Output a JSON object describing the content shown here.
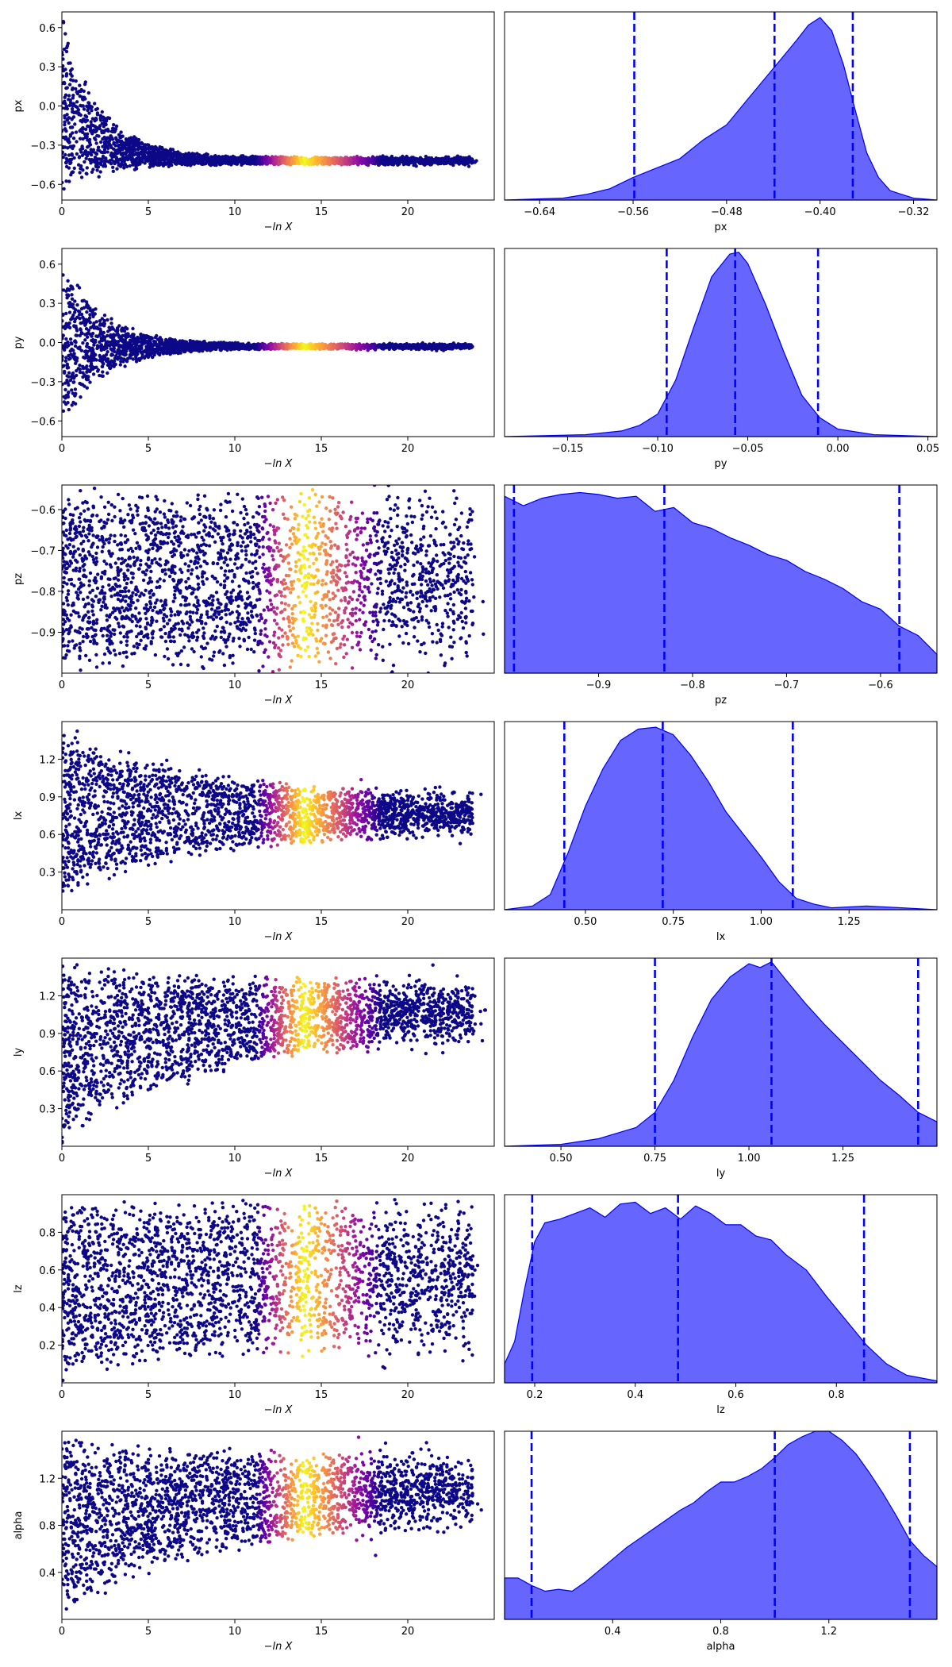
{
  "chart_data": [
    {
      "type": "scatter",
      "panel": "trace",
      "ylabel": "px",
      "xlabel": "−ln X",
      "xlim": [
        0,
        25
      ],
      "ylim": [
        -0.72,
        0.72
      ],
      "xticks": [
        0,
        5,
        10,
        15,
        20
      ],
      "yticks": [
        -0.6,
        -0.3,
        0.0,
        0.3,
        0.6
      ],
      "ytick_labels": [
        "−0.6",
        "−0.3",
        "0.0",
        "0.3",
        "0.6"
      ],
      "shape": {
        "center_start": 0.0,
        "center_end": -0.42,
        "half_start": 0.72,
        "half_end": 0.03,
        "decay": 2.2,
        "xmax": 24.5
      },
      "colormap": "plasma",
      "bright_band_center": 14
    },
    {
      "type": "area",
      "panel": "posterior",
      "xlabel": "px",
      "xlim": [
        -0.67,
        -0.3
      ],
      "xticks": [
        -0.64,
        -0.56,
        -0.48,
        -0.4,
        -0.32
      ],
      "xtick_labels": [
        "−0.64",
        "−0.56",
        "−0.48",
        "−0.40",
        "−0.32"
      ],
      "fill_color": "#6666ff",
      "edge_color": "#0000ee",
      "quantile_color": "#0000ff",
      "quantiles": [
        -0.559,
        -0.439,
        -0.372
      ],
      "density": {
        "x": [
          -0.67,
          -0.62,
          -0.6,
          -0.58,
          -0.56,
          -0.54,
          -0.52,
          -0.5,
          -0.48,
          -0.46,
          -0.44,
          -0.42,
          -0.41,
          -0.4,
          -0.39,
          -0.38,
          -0.37,
          -0.36,
          -0.35,
          -0.34,
          -0.32,
          -0.3
        ],
        "y": [
          0.0,
          0.01,
          0.03,
          0.06,
          0.12,
          0.17,
          0.22,
          0.32,
          0.4,
          0.55,
          0.7,
          0.85,
          0.93,
          0.97,
          0.9,
          0.72,
          0.48,
          0.25,
          0.12,
          0.05,
          0.01,
          0.0
        ]
      }
    },
    {
      "type": "scatter",
      "panel": "trace",
      "ylabel": "py",
      "xlabel": "−ln X",
      "xlim": [
        0,
        25
      ],
      "ylim": [
        -0.72,
        0.72
      ],
      "xticks": [
        0,
        5,
        10,
        15,
        20
      ],
      "yticks": [
        -0.6,
        -0.3,
        0.0,
        0.3,
        0.6
      ],
      "ytick_labels": [
        "−0.6",
        "−0.3",
        "0.0",
        "0.3",
        "0.6"
      ],
      "shape": {
        "center_start": 0.0,
        "center_end": -0.03,
        "half_start": 0.72,
        "half_end": 0.02,
        "decay": 2.3,
        "xmax": 24.5
      },
      "colormap": "plasma",
      "bright_band_center": 14
    },
    {
      "type": "area",
      "panel": "posterior",
      "xlabel": "py",
      "xlim": [
        -0.185,
        0.055
      ],
      "xticks": [
        -0.15,
        -0.1,
        -0.05,
        0.0,
        0.05
      ],
      "xtick_labels": [
        "−0.15",
        "−0.10",
        "−0.05",
        "0.00",
        "0.05"
      ],
      "fill_color": "#6666ff",
      "edge_color": "#0000ee",
      "quantile_color": "#0000ff",
      "quantiles": [
        -0.095,
        -0.057,
        -0.011
      ],
      "density": {
        "x": [
          -0.185,
          -0.14,
          -0.12,
          -0.11,
          -0.1,
          -0.09,
          -0.08,
          -0.07,
          -0.06,
          -0.055,
          -0.05,
          -0.04,
          -0.03,
          -0.02,
          -0.01,
          0.0,
          0.02,
          0.055
        ],
        "y": [
          0.0,
          0.01,
          0.03,
          0.06,
          0.12,
          0.3,
          0.58,
          0.85,
          0.97,
          0.98,
          0.92,
          0.7,
          0.45,
          0.22,
          0.1,
          0.04,
          0.01,
          0.0
        ]
      }
    },
    {
      "type": "scatter",
      "panel": "trace",
      "ylabel": "pz",
      "xlabel": "−ln X",
      "xlim": [
        0,
        25
      ],
      "ylim": [
        -1.0,
        -0.54
      ],
      "xticks": [
        0,
        5,
        10,
        15,
        20
      ],
      "yticks": [
        -0.9,
        -0.8,
        -0.7,
        -0.6
      ],
      "ytick_labels": [
        "−0.9",
        "−0.8",
        "−0.7",
        "−0.6"
      ],
      "shape": {
        "center_start": -0.77,
        "center_end": -0.77,
        "half_start": 0.23,
        "half_end": 0.23,
        "decay": 1,
        "xmax": 24.5
      },
      "colormap": "plasma",
      "bright_band_center": 14
    },
    {
      "type": "area",
      "panel": "posterior",
      "xlabel": "pz",
      "xlim": [
        -1.0,
        -0.54
      ],
      "xticks": [
        -0.9,
        -0.8,
        -0.7,
        -0.6
      ],
      "xtick_labels": [
        "−0.9",
        "−0.8",
        "−0.7",
        "−0.6"
      ],
      "fill_color": "#6666ff",
      "edge_color": "#0000ee",
      "quantile_color": "#0000ff",
      "quantiles": [
        -0.99,
        -0.83,
        -0.58
      ],
      "density": {
        "x": [
          -1.0,
          -0.98,
          -0.96,
          -0.94,
          -0.92,
          -0.9,
          -0.88,
          -0.86,
          -0.84,
          -0.82,
          -0.8,
          -0.78,
          -0.76,
          -0.74,
          -0.72,
          -0.7,
          -0.68,
          -0.66,
          -0.64,
          -0.62,
          -0.6,
          -0.58,
          -0.56,
          -0.54
        ],
        "y": [
          0.94,
          0.89,
          0.93,
          0.95,
          0.96,
          0.95,
          0.93,
          0.94,
          0.86,
          0.88,
          0.8,
          0.77,
          0.72,
          0.68,
          0.63,
          0.6,
          0.54,
          0.5,
          0.45,
          0.38,
          0.34,
          0.25,
          0.2,
          0.1
        ]
      }
    },
    {
      "type": "scatter",
      "panel": "trace",
      "ylabel": "lx",
      "xlabel": "−ln X",
      "xlim": [
        0,
        25
      ],
      "ylim": [
        0.0,
        1.5
      ],
      "xticks": [
        0,
        5,
        10,
        15,
        20
      ],
      "yticks": [
        0.3,
        0.6,
        0.9,
        1.2
      ],
      "ytick_labels": [
        "0.3",
        "0.6",
        "0.9",
        "1.2"
      ],
      "shape": {
        "center_start": 0.78,
        "center_end": 0.76,
        "half_start": 0.72,
        "half_end": 0.12,
        "decay": 9,
        "xmax": 24.5
      },
      "colormap": "plasma",
      "bright_band_center": 14
    },
    {
      "type": "area",
      "panel": "posterior",
      "xlabel": "lx",
      "xlim": [
        0.27,
        1.5
      ],
      "xticks": [
        0.5,
        0.75,
        1.0,
        1.25
      ],
      "xtick_labels": [
        "0.50",
        "0.75",
        "1.00",
        "1.25"
      ],
      "fill_color": "#6666ff",
      "edge_color": "#0000ee",
      "quantile_color": "#0000ff",
      "quantiles": [
        0.44,
        0.72,
        1.09
      ],
      "density": {
        "x": [
          0.27,
          0.35,
          0.4,
          0.45,
          0.5,
          0.55,
          0.6,
          0.65,
          0.7,
          0.75,
          0.8,
          0.85,
          0.9,
          0.95,
          1.0,
          1.05,
          1.1,
          1.15,
          1.2,
          1.3,
          1.4,
          1.5
        ],
        "y": [
          0.0,
          0.02,
          0.08,
          0.3,
          0.55,
          0.75,
          0.9,
          0.96,
          0.97,
          0.93,
          0.82,
          0.68,
          0.52,
          0.4,
          0.28,
          0.15,
          0.06,
          0.03,
          0.01,
          0.02,
          0.01,
          0.0
        ]
      }
    },
    {
      "type": "scatter",
      "panel": "trace",
      "ylabel": "ly",
      "xlabel": "−ln X",
      "xlim": [
        0,
        25
      ],
      "ylim": [
        0.0,
        1.5
      ],
      "xticks": [
        0,
        5,
        10,
        15,
        20
      ],
      "yticks": [
        0.3,
        0.6,
        0.9,
        1.2
      ],
      "ytick_labels": [
        "0.3",
        "0.6",
        "0.9",
        "1.2"
      ],
      "shape": {
        "center_start": 0.75,
        "center_end": 1.1,
        "half_start": 0.75,
        "half_end": 0.22,
        "decay": 9,
        "xmax": 24.5
      },
      "colormap": "plasma",
      "bright_band_center": 14
    },
    {
      "type": "area",
      "panel": "posterior",
      "xlabel": "ly",
      "xlim": [
        0.35,
        1.5
      ],
      "xticks": [
        0.5,
        0.75,
        1.0,
        1.25
      ],
      "xtick_labels": [
        "0.50",
        "0.75",
        "1.00",
        "1.25"
      ],
      "fill_color": "#6666ff",
      "edge_color": "#0000ee",
      "quantile_color": "#0000ff",
      "quantiles": [
        0.75,
        1.06,
        1.45
      ],
      "density": {
        "x": [
          0.35,
          0.5,
          0.6,
          0.7,
          0.75,
          0.8,
          0.85,
          0.9,
          0.95,
          1.0,
          1.03,
          1.06,
          1.1,
          1.15,
          1.2,
          1.25,
          1.3,
          1.35,
          1.4,
          1.45,
          1.5
        ],
        "y": [
          0.0,
          0.01,
          0.04,
          0.1,
          0.18,
          0.35,
          0.58,
          0.78,
          0.9,
          0.97,
          0.95,
          0.98,
          0.88,
          0.76,
          0.65,
          0.55,
          0.45,
          0.35,
          0.27,
          0.18,
          0.13
        ]
      }
    },
    {
      "type": "scatter",
      "panel": "trace",
      "ylabel": "lz",
      "xlabel": "−ln X",
      "xlim": [
        0,
        25
      ],
      "ylim": [
        0.0,
        1.0
      ],
      "xticks": [
        0,
        5,
        10,
        15,
        20
      ],
      "yticks": [
        0.2,
        0.4,
        0.6,
        0.8
      ],
      "ytick_labels": [
        "0.2",
        "0.4",
        "0.6",
        "0.8"
      ],
      "shape": {
        "center_start": 0.5,
        "center_end": 0.56,
        "half_start": 0.5,
        "half_end": 0.42,
        "decay": 5,
        "xmax": 24.5
      },
      "colormap": "plasma",
      "bright_band_center": 14
    },
    {
      "type": "area",
      "panel": "posterior",
      "xlabel": "lz",
      "xlim": [
        0.14,
        1.0
      ],
      "xticks": [
        0.2,
        0.4,
        0.6,
        0.8
      ],
      "xtick_labels": [
        "0.2",
        "0.4",
        "0.6",
        "0.8"
      ],
      "fill_color": "#6666ff",
      "edge_color": "#0000ee",
      "quantile_color": "#0000ff",
      "quantiles": [
        0.195,
        0.485,
        0.855
      ],
      "density": {
        "x": [
          0.14,
          0.16,
          0.18,
          0.2,
          0.22,
          0.25,
          0.28,
          0.31,
          0.34,
          0.37,
          0.4,
          0.43,
          0.46,
          0.49,
          0.52,
          0.55,
          0.58,
          0.61,
          0.64,
          0.67,
          0.7,
          0.74,
          0.78,
          0.82,
          0.86,
          0.9,
          0.94,
          1.0
        ],
        "y": [
          0.1,
          0.22,
          0.5,
          0.75,
          0.85,
          0.87,
          0.9,
          0.93,
          0.88,
          0.95,
          0.96,
          0.9,
          0.93,
          0.87,
          0.94,
          0.9,
          0.84,
          0.84,
          0.78,
          0.76,
          0.68,
          0.6,
          0.46,
          0.33,
          0.2,
          0.1,
          0.04,
          0.01
        ]
      }
    },
    {
      "type": "scatter",
      "panel": "trace",
      "ylabel": "alpha",
      "xlabel": "−ln X",
      "xlim": [
        0,
        25
      ],
      "ylim": [
        0.0,
        1.6
      ],
      "xticks": [
        0,
        5,
        10,
        15,
        20
      ],
      "yticks": [
        0.4,
        0.8,
        1.2
      ],
      "ytick_labels": [
        "0.4",
        "0.8",
        "1.2"
      ],
      "shape": {
        "center_start": 0.8,
        "center_end": 1.1,
        "half_start": 0.8,
        "half_end": 0.3,
        "decay": 8,
        "xmax": 24.5
      },
      "colormap": "plasma",
      "bright_band_center": 14
    },
    {
      "type": "area",
      "panel": "posterior",
      "xlabel": "alpha",
      "xlim": [
        0.0,
        1.6
      ],
      "xticks": [
        0.4,
        0.8,
        1.2
      ],
      "xtick_labels": [
        "0.4",
        "0.8",
        "1.2"
      ],
      "fill_color": "#6666ff",
      "edge_color": "#0000ee",
      "quantile_color": "#0000ff",
      "quantiles": [
        0.1,
        1.0,
        1.5
      ],
      "density": {
        "x": [
          0.0,
          0.05,
          0.1,
          0.15,
          0.2,
          0.25,
          0.3,
          0.35,
          0.4,
          0.45,
          0.5,
          0.55,
          0.6,
          0.65,
          0.7,
          0.75,
          0.8,
          0.85,
          0.9,
          0.95,
          1.0,
          1.05,
          1.1,
          1.15,
          1.2,
          1.25,
          1.3,
          1.35,
          1.4,
          1.45,
          1.5,
          1.55,
          1.6
        ],
        "y": [
          0.22,
          0.22,
          0.18,
          0.15,
          0.16,
          0.15,
          0.2,
          0.26,
          0.32,
          0.38,
          0.43,
          0.48,
          0.53,
          0.58,
          0.62,
          0.68,
          0.73,
          0.73,
          0.76,
          0.8,
          0.86,
          0.93,
          0.97,
          1.0,
          1.0,
          0.95,
          0.88,
          0.78,
          0.67,
          0.55,
          0.42,
          0.34,
          0.28
        ]
      }
    }
  ]
}
